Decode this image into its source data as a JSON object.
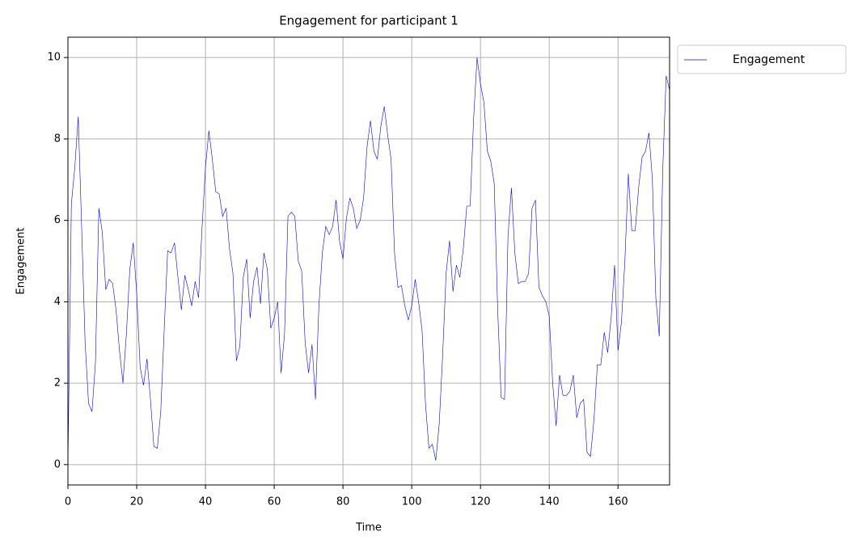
{
  "chart_data": {
    "type": "line",
    "title": "Engagement for participant 1",
    "x_label": "Time",
    "y_label": "Engagement",
    "x": [
      0,
      1,
      2,
      3,
      4,
      5,
      6,
      7,
      8,
      9,
      10,
      11,
      12,
      13,
      14,
      15,
      16,
      17,
      18,
      19,
      20,
      21,
      22,
      23,
      24,
      25,
      26,
      27,
      28,
      29,
      30,
      31,
      32,
      33,
      34,
      35,
      36,
      37,
      38,
      39,
      40,
      41,
      42,
      43,
      44,
      45,
      46,
      47,
      48,
      49,
      50,
      51,
      52,
      53,
      54,
      55,
      56,
      57,
      58,
      59,
      60,
      61,
      62,
      63,
      64,
      65,
      66,
      67,
      68,
      69,
      70,
      71,
      72,
      73,
      74,
      75,
      76,
      77,
      78,
      79,
      80,
      81,
      82,
      83,
      84,
      85,
      86,
      87,
      88,
      89,
      90,
      91,
      92,
      93,
      94,
      95,
      96,
      97,
      98,
      99,
      100,
      101,
      102,
      103,
      104,
      105,
      106,
      107,
      108,
      109,
      110,
      111,
      112,
      113,
      114,
      115,
      116,
      117,
      118,
      119,
      120,
      121,
      122,
      123,
      124,
      125,
      126,
      127,
      128,
      129,
      130,
      131,
      132,
      133,
      134,
      135,
      136,
      137,
      138,
      139,
      140,
      141,
      142,
      143,
      144,
      145,
      146,
      147,
      148,
      149,
      150,
      151,
      152,
      153,
      154,
      155,
      156,
      157,
      158,
      159,
      160,
      161,
      162,
      163,
      164,
      165,
      166,
      167,
      168,
      169,
      170,
      171,
      172,
      173,
      174,
      175
    ],
    "series": [
      {
        "name": "Engagement",
        "color": "#0000ff",
        "values": [
          0,
          6.4,
          7.3,
          8.55,
          5.8,
          3.0,
          1.5,
          1.3,
          2.5,
          6.3,
          5.7,
          4.3,
          4.55,
          4.45,
          3.8,
          2.8,
          2.0,
          3.2,
          4.8,
          5.45,
          4.2,
          2.4,
          1.95,
          2.6,
          1.6,
          0.45,
          0.4,
          1.3,
          3.3,
          5.25,
          5.2,
          5.45,
          4.6,
          3.8,
          4.65,
          4.3,
          3.9,
          4.5,
          4.1,
          5.8,
          7.3,
          8.2,
          7.5,
          6.7,
          6.65,
          6.1,
          6.3,
          5.3,
          4.7,
          2.55,
          2.9,
          4.6,
          5.05,
          3.6,
          4.5,
          4.85,
          3.95,
          5.2,
          4.8,
          3.35,
          3.6,
          4.0,
          2.25,
          3.2,
          6.1,
          6.2,
          6.1,
          5.0,
          4.75,
          3.0,
          2.25,
          2.95,
          1.6,
          3.9,
          5.2,
          5.85,
          5.65,
          5.85,
          6.5,
          5.5,
          5.05,
          6.05,
          6.55,
          6.3,
          5.8,
          6.0,
          6.55,
          7.8,
          8.45,
          7.7,
          7.5,
          8.3,
          8.8,
          8.1,
          7.5,
          5.2,
          4.35,
          4.4,
          3.9,
          3.55,
          3.9,
          4.55,
          4.0,
          3.3,
          1.5,
          0.4,
          0.5,
          0.1,
          1.0,
          2.7,
          4.7,
          5.5,
          4.25,
          4.9,
          4.6,
          5.3,
          6.35,
          6.35,
          8.5,
          10.0,
          9.35,
          8.9,
          7.7,
          7.45,
          6.9,
          3.8,
          1.65,
          1.6,
          5.6,
          6.8,
          5.2,
          4.45,
          4.5,
          4.5,
          4.7,
          6.3,
          6.5,
          4.35,
          4.15,
          4.0,
          3.65,
          2.0,
          0.95,
          2.2,
          1.7,
          1.7,
          1.8,
          2.2,
          1.15,
          1.5,
          1.6,
          0.3,
          0.2,
          1.1,
          2.45,
          2.45,
          3.25,
          2.75,
          3.6,
          4.9,
          2.8,
          3.5,
          5.0,
          7.15,
          5.75,
          5.75,
          6.8,
          7.55,
          7.7,
          8.15,
          7.0,
          4.1,
          3.15,
          7.2,
          9.55,
          9.2
        ]
      }
    ],
    "xlim": [
      0,
      175
    ],
    "ylim": [
      -0.5,
      10.5
    ],
    "xticks": [
      0,
      20,
      40,
      60,
      80,
      100,
      120,
      140,
      160
    ],
    "yticks": [
      0,
      2,
      4,
      6,
      8,
      10
    ],
    "grid": true,
    "legend": "outside upper right"
  }
}
